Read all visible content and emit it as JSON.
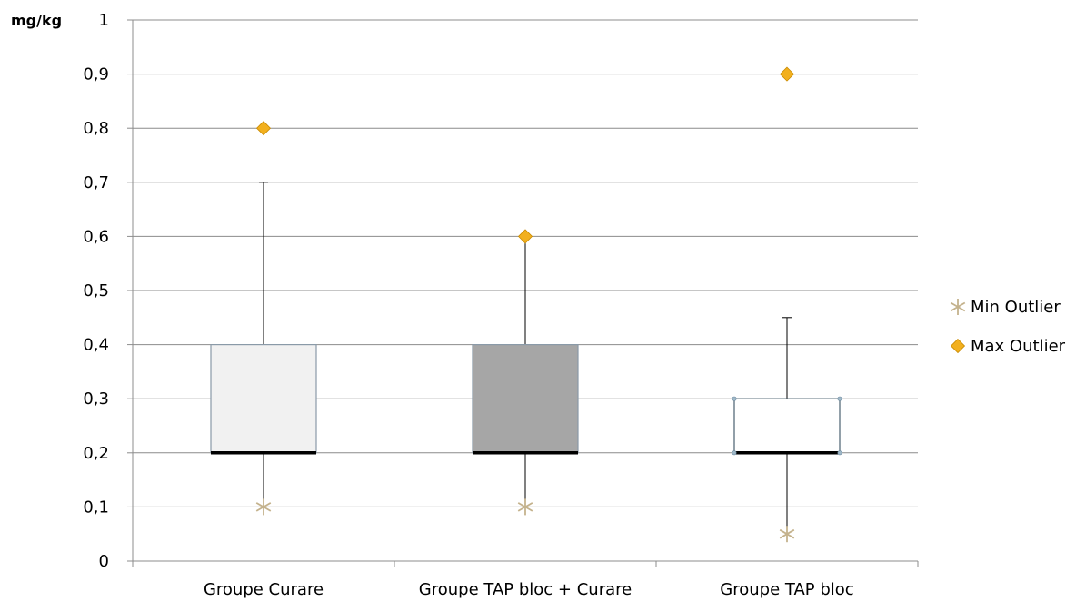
{
  "chart_data": {
    "type": "box",
    "ylabel": "mg/kg",
    "ylim": [
      0,
      1
    ],
    "yticks": [
      {
        "value": 0,
        "label": "0"
      },
      {
        "value": 0.1,
        "label": "0,1"
      },
      {
        "value": 0.2,
        "label": "0,2"
      },
      {
        "value": 0.3,
        "label": "0,3"
      },
      {
        "value": 0.4,
        "label": "0,4"
      },
      {
        "value": 0.5,
        "label": "0,5"
      },
      {
        "value": 0.6,
        "label": "0,6"
      },
      {
        "value": 0.7,
        "label": "0,7"
      },
      {
        "value": 0.8,
        "label": "0,8"
      },
      {
        "value": 0.9,
        "label": "0,9"
      },
      {
        "value": 1,
        "label": "1"
      }
    ],
    "grid": true,
    "legend_position": "right",
    "legend": [
      {
        "key": "min",
        "label": "Min Outlier",
        "color": "#c4b28c"
      },
      {
        "key": "max",
        "label": "Max Outlier",
        "color": "#f2b01e"
      }
    ],
    "boxes": [
      {
        "name": "Groupe Curare",
        "whisker_low": 0.2,
        "q1": 0.2,
        "median": 0.2,
        "q3": 0.4,
        "whisker_high": 0.7,
        "min_outlier": 0.1,
        "max_outlier": 0.8,
        "fill": "#f1f1f1",
        "stroke": "#8a9aa8"
      },
      {
        "name": "Groupe TAP bloc + Curare",
        "whisker_low": 0.2,
        "q1": 0.2,
        "median": 0.2,
        "q3": 0.4,
        "whisker_high": 0.6,
        "min_outlier": 0.1,
        "max_outlier": 0.6,
        "fill": "#a6a6a6",
        "stroke": "#8a9aa8"
      },
      {
        "name": "Groupe TAP bloc",
        "whisker_low": 0.05,
        "q1": 0.2,
        "median": 0.2,
        "q3": 0.3,
        "whisker_high": 0.45,
        "min_outlier": 0.05,
        "max_outlier": 0.9,
        "fill": "#ffffff",
        "stroke": "#4a6070"
      }
    ]
  }
}
